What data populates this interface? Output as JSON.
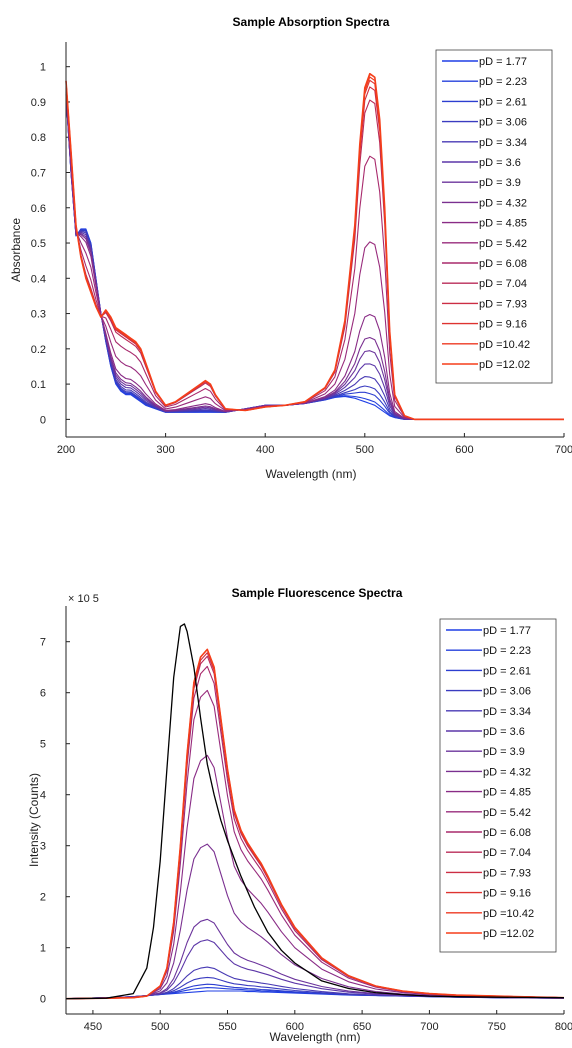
{
  "colors": {
    "series": [
      "#1f3fe6",
      "#2440dc",
      "#2c3ed0",
      "#3a3cc0",
      "#483ab4",
      "#5c37a8",
      "#6b349c",
      "#7a3090",
      "#892c86",
      "#982b7c",
      "#a82a6c",
      "#ba2b58",
      "#cc2e44",
      "#de3330",
      "#ee3a22",
      "#f53f1a"
    ],
    "reference": "#000000",
    "axis": "#222222"
  },
  "chart_data": [
    {
      "type": "line",
      "title": "Sample Absorption Spectra",
      "xlabel": "Wavelength (nm)",
      "ylabel": "Absorbance",
      "xlim": [
        200,
        700
      ],
      "ylim": [
        -0.05,
        1.07
      ],
      "xticks": [
        200,
        300,
        400,
        500,
        600,
        700
      ],
      "yticks": [
        0,
        0.1,
        0.2,
        0.3,
        0.4,
        0.5,
        0.6,
        0.7,
        0.8,
        0.9,
        1
      ],
      "legend_position": "top-right",
      "legend": [
        "pD = 1.77",
        "pD = 2.23",
        "pD = 2.61",
        "pD = 3.06",
        "pD = 3.34",
        "pD =  3.6",
        "pD =  3.9",
        "pD = 4.32",
        "pD = 4.85",
        "pD = 5.42",
        "pD = 6.08",
        "pD = 7.04",
        "pD = 7.93",
        "pD = 9.16",
        "pD =10.42",
        "pD =12.02"
      ],
      "x": [
        200,
        205,
        210,
        215,
        220,
        225,
        230,
        235,
        240,
        245,
        250,
        255,
        260,
        265,
        270,
        275,
        280,
        290,
        300,
        310,
        320,
        330,
        335,
        340,
        345,
        350,
        360,
        380,
        400,
        420,
        440,
        460,
        470,
        480,
        490,
        495,
        500,
        505,
        510,
        515,
        520,
        525,
        530,
        540,
        550,
        560,
        600,
        700
      ],
      "acid": [
        0.92,
        0.7,
        0.52,
        0.54,
        0.54,
        0.5,
        0.4,
        0.3,
        0.22,
        0.15,
        0.1,
        0.08,
        0.07,
        0.07,
        0.06,
        0.05,
        0.04,
        0.03,
        0.02,
        0.02,
        0.02,
        0.02,
        0.02,
        0.02,
        0.02,
        0.02,
        0.02,
        0.03,
        0.04,
        0.04,
        0.045,
        0.055,
        0.062,
        0.065,
        0.06,
        0.055,
        0.05,
        0.045,
        0.04,
        0.03,
        0.02,
        0.01,
        0.005,
        0,
        0,
        0,
        0,
        0
      ],
      "base": [
        0.96,
        0.76,
        0.55,
        0.46,
        0.4,
        0.36,
        0.32,
        0.29,
        0.31,
        0.29,
        0.26,
        0.25,
        0.24,
        0.23,
        0.22,
        0.2,
        0.16,
        0.08,
        0.04,
        0.05,
        0.07,
        0.09,
        0.1,
        0.11,
        0.1,
        0.07,
        0.03,
        0.025,
        0.035,
        0.04,
        0.05,
        0.09,
        0.14,
        0.28,
        0.55,
        0.78,
        0.94,
        0.98,
        0.97,
        0.85,
        0.6,
        0.25,
        0.07,
        0.01,
        0,
        0,
        0,
        0
      ],
      "fractions": [
        0,
        0.01,
        0.03,
        0.05,
        0.08,
        0.12,
        0.16,
        0.2,
        0.27,
        0.49,
        0.75,
        0.92,
        0.96,
        0.98,
        0.99,
        1.0
      ]
    },
    {
      "type": "line",
      "title": "Sample Fluorescence Spectra",
      "xlabel": "Wavelength (nm)",
      "ylabel": "Intensity (Counts)",
      "exponent_label": "× 10 5",
      "xlim": [
        430,
        800
      ],
      "ylim": [
        -0.3,
        7.7
      ],
      "xticks": [
        450,
        500,
        550,
        600,
        650,
        700,
        750,
        800
      ],
      "yticks": [
        0,
        1,
        2,
        3,
        4,
        5,
        6,
        7
      ],
      "legend_position": "top-right",
      "legend": [
        "pD = 1.77",
        "pD = 2.23",
        "pD = 2.61",
        "pD = 3.06",
        "pD = 3.34",
        "pD =  3.6",
        "pD =  3.9",
        "pD = 4.32",
        "pD = 4.85",
        "pD = 5.42",
        "pD = 6.08",
        "pD = 7.04",
        "pD = 7.93",
        "pD = 9.16",
        "pD =10.42",
        "pD =12.02"
      ],
      "x": [
        430,
        460,
        480,
        490,
        500,
        505,
        510,
        515,
        520,
        525,
        530,
        535,
        540,
        545,
        550,
        555,
        560,
        565,
        570,
        575,
        580,
        590,
        600,
        620,
        640,
        660,
        680,
        700,
        720,
        750,
        800
      ],
      "acid": [
        0,
        0.02,
        0.04,
        0.06,
        0.08,
        0.09,
        0.1,
        0.11,
        0.12,
        0.13,
        0.14,
        0.15,
        0.15,
        0.15,
        0.15,
        0.15,
        0.15,
        0.14,
        0.14,
        0.13,
        0.13,
        0.12,
        0.11,
        0.09,
        0.07,
        0.06,
        0.05,
        0.04,
        0.03,
        0.02,
        0.01
      ],
      "base": [
        0,
        0.01,
        0.02,
        0.05,
        0.25,
        0.6,
        1.5,
        3.0,
        4.8,
        6.2,
        6.7,
        6.85,
        6.5,
        5.5,
        4.5,
        3.7,
        3.3,
        3.05,
        2.85,
        2.65,
        2.4,
        1.85,
        1.4,
        0.8,
        0.45,
        0.25,
        0.15,
        0.1,
        0.07,
        0.05,
        0.02
      ],
      "fractions": [
        0,
        0.01,
        0.02,
        0.04,
        0.07,
        0.15,
        0.21,
        0.43,
        0.69,
        0.88,
        0.95,
        0.98,
        0.99,
        1.0,
        1.0,
        1.0
      ],
      "reference_series": {
        "x": [
          430,
          460,
          480,
          490,
          495,
          500,
          505,
          510,
          515,
          518,
          520,
          525,
          530,
          535,
          540,
          545,
          550,
          555,
          560,
          570,
          580,
          590,
          600,
          620,
          640,
          660,
          680,
          700,
          720,
          750,
          800
        ],
        "values": [
          0,
          0.01,
          0.1,
          0.6,
          1.4,
          2.7,
          4.5,
          6.3,
          7.3,
          7.35,
          7.2,
          6.5,
          5.5,
          4.6,
          4.0,
          3.5,
          3.1,
          2.75,
          2.4,
          1.8,
          1.3,
          0.95,
          0.7,
          0.35,
          0.2,
          0.12,
          0.08,
          0.05,
          0.04,
          0.03,
          0.02
        ]
      }
    }
  ]
}
